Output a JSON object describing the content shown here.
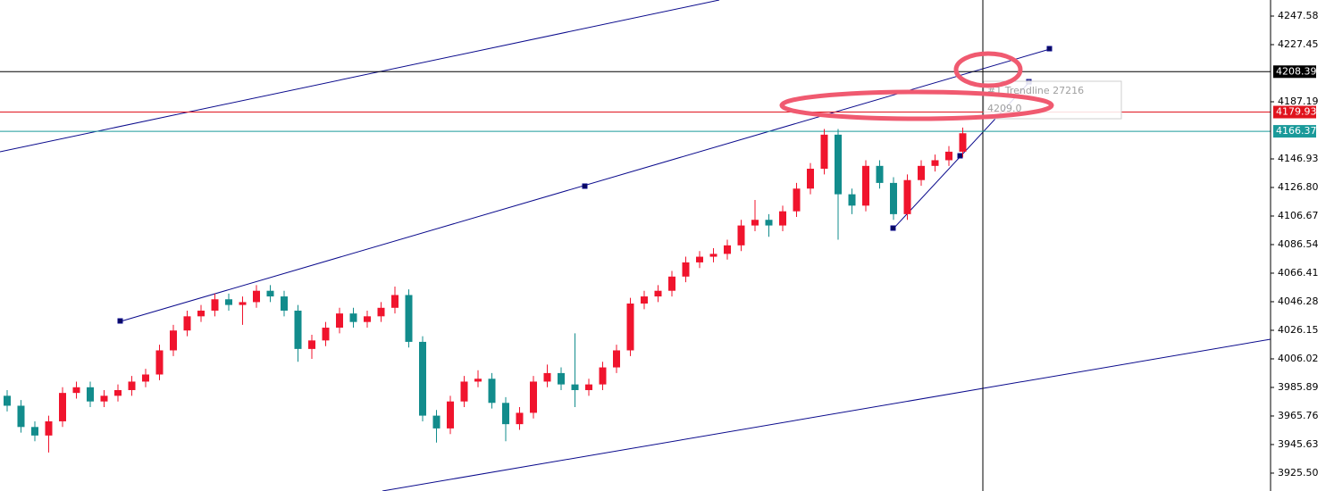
{
  "chart_data": {
    "type": "candlestick",
    "up_color": "#f0142d",
    "down_color": "#128c8c",
    "ylim": [
      3912.9,
      4258.9
    ],
    "yticks": [
      4247.58,
      4227.45,
      4187.19,
      4146.93,
      {
        "value": 4126.8,
        "label": "4126.80"
      },
      4106.67,
      4086.54,
      4066.41,
      4046.28,
      4026.15,
      4006.02,
      3985.89,
      3965.76,
      3945.63,
      {
        "value": 3925.5,
        "label": "3925.50"
      }
    ],
    "price_lines": [
      {
        "value": 4208.39,
        "color": "#000000"
      },
      {
        "value": 4179.93,
        "color": "#e0141e"
      },
      {
        "value": 4166.37,
        "color": "#1a9a9a"
      }
    ],
    "tooltip": {
      "title": "#1 Trendline 27216",
      "value": "4209.0"
    },
    "series": [
      {
        "open": [
          3980,
          3973,
          3958,
          3952,
          3962,
          3982,
          3986,
          3976,
          3980,
          3984,
          3990,
          3995,
          4012,
          4026,
          4036,
          4040,
          4048,
          4044,
          4046,
          4054,
          4050,
          4040,
          4013,
          4019,
          4028,
          4038,
          4032,
          4036,
          4042,
          4051,
          4018,
          3966,
          3957,
          3976,
          3990,
          3992,
          3975,
          3960,
          3968,
          3990,
          3996,
          3988,
          3984,
          3988,
          4000,
          4012,
          4045,
          4050,
          4054,
          4064,
          4074,
          4078,
          4080,
          4086,
          4100,
          4104,
          4100,
          4110,
          4126,
          4140,
          4164,
          4122,
          4114,
          4142,
          4130,
          4108,
          4132,
          4142,
          4146,
          4152
        ],
        "high": [
          3984,
          3977,
          3962,
          3966,
          3986,
          3990,
          3990,
          3984,
          3988,
          3994,
          3999,
          4016,
          4030,
          4040,
          4044,
          4052,
          4052,
          4050,
          4058,
          4058,
          4054,
          4044,
          4023,
          4032,
          4042,
          4042,
          4040,
          4046,
          4057,
          4055,
          4022,
          3970,
          3980,
          3994,
          3998,
          3996,
          3979,
          3972,
          3994,
          4002,
          4000,
          4024,
          3992,
          4004,
          4016,
          4049,
          4054,
          4058,
          4068,
          4078,
          4082,
          4084,
          4090,
          4104,
          4118,
          4108,
          4114,
          4130,
          4144,
          4168,
          4168,
          4126,
          4146,
          4146,
          4134,
          4136,
          4146,
          4150,
          4156,
          4169
        ],
        "low": [
          3969,
          3954,
          3948,
          3940,
          3958,
          3978,
          3972,
          3972,
          3976,
          3980,
          3986,
          3991,
          4008,
          4022,
          4032,
          4036,
          4040,
          4030,
          4042,
          4046,
          4036,
          4004,
          4006,
          4015,
          4024,
          4028,
          4028,
          4032,
          4038,
          4014,
          3962,
          3947,
          3953,
          3972,
          3986,
          3971,
          3948,
          3956,
          3964,
          3986,
          3984,
          3972,
          3980,
          3984,
          3996,
          4008,
          4041,
          4046,
          4050,
          4060,
          4070,
          4074,
          4076,
          4082,
          4096,
          4092,
          4096,
          4106,
          4122,
          4136,
          4090,
          4108,
          4110,
          4126,
          4104,
          4104,
          4128,
          4138,
          4142,
          4148
        ],
        "close": [
          3973,
          3958,
          3952,
          3962,
          3982,
          3986,
          3976,
          3980,
          3984,
          3990,
          3995,
          4012,
          4026,
          4036,
          4040,
          4048,
          4044,
          4046,
          4054,
          4050,
          4040,
          4013,
          4019,
          4028,
          4038,
          4032,
          4036,
          4042,
          4051,
          4018,
          3966,
          3957,
          3976,
          3990,
          3992,
          3975,
          3960,
          3968,
          3990,
          3996,
          3988,
          3984,
          3988,
          4000,
          4012,
          4045,
          4050,
          4054,
          4064,
          4074,
          4078,
          4080,
          4086,
          4100,
          4104,
          4100,
          4110,
          4126,
          4140,
          4164,
          4122,
          4114,
          4142,
          4130,
          4108,
          4132,
          4142,
          4146,
          4152,
          4165
        ]
      }
    ]
  }
}
